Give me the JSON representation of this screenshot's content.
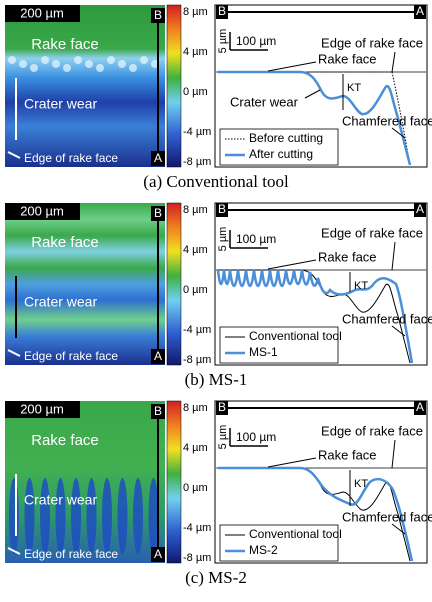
{
  "panels": [
    {
      "caption": "(a) Conventional tool",
      "image": {
        "scale_bar": "200 µm",
        "point_b": "B",
        "point_a": "A",
        "rake_face": "Rake face",
        "crater_wear": "Crater wear",
        "edge": "Edge of rake face"
      },
      "colorbar": [
        "8 µm",
        "4 µm",
        "0 µm",
        "-4 µm",
        "-8 µm"
      ],
      "profile": {
        "point_b": "B",
        "point_a": "A",
        "scale_v": "5 µm",
        "scale_h": "100 µm",
        "edge": "Edge of rake face",
        "rake_face": "Rake face",
        "crater_wear": "Crater wear",
        "kt": "KT",
        "chamfered": "Chamfered face",
        "legend": [
          "Before cutting",
          "After cutting"
        ]
      }
    },
    {
      "caption": "(b) MS-1",
      "image": {
        "scale_bar": "200 µm",
        "point_b": "B",
        "point_a": "A",
        "rake_face": "Rake face",
        "crater_wear": "Crater wear",
        "edge": "Edge of rake face"
      },
      "colorbar": [
        "8 µm",
        "4 µm",
        "0 µm",
        "-4 µm",
        "-8 µm"
      ],
      "profile": {
        "point_b": "B",
        "point_a": "A",
        "scale_v": "5 µm",
        "scale_h": "100 µm",
        "edge": "Edge of rake face",
        "rake_face": "Rake face",
        "kt": "KT",
        "chamfered": "Chamfered face",
        "legend": [
          "Conventional tool",
          "MS-1"
        ]
      }
    },
    {
      "caption": "(c) MS-2",
      "image": {
        "scale_bar": "200 µm",
        "point_b": "B",
        "point_a": "A",
        "rake_face": "Rake face",
        "crater_wear": "Crater wear",
        "edge": "Edge of rake face"
      },
      "colorbar": [
        "8 µm",
        "4 µm",
        "0 µm",
        "-4 µm",
        "-8 µm"
      ],
      "profile": {
        "point_b": "B",
        "point_a": "A",
        "scale_v": "5 µm",
        "scale_h": "100 µm",
        "edge": "Edge of rake face",
        "rake_face": "Rake face",
        "kt": "KT",
        "chamfered": "Chamfered face",
        "legend": [
          "Conventional tool",
          "MS-2"
        ]
      }
    }
  ]
}
